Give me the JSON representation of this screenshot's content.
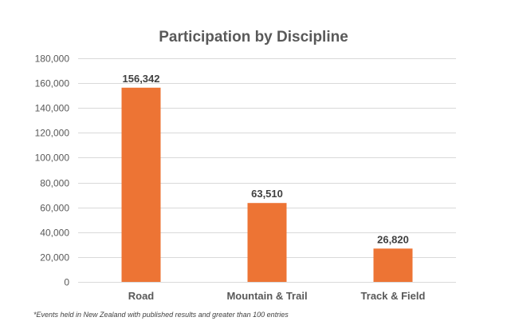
{
  "chart_data": {
    "type": "bar",
    "title": "Participation by Discipline",
    "xlabel": "",
    "ylabel": "",
    "categories": [
      "Road",
      "Mountain & Trail",
      "Track & Field"
    ],
    "values": [
      156342,
      63510,
      26820
    ],
    "data_labels": [
      "156,342",
      "63,510",
      "26,820"
    ],
    "ylim": [
      0,
      180000
    ],
    "yticks": [
      0,
      20000,
      40000,
      60000,
      80000,
      100000,
      120000,
      140000,
      160000,
      180000
    ],
    "ytick_labels": [
      "0",
      "20,000",
      "40,000",
      "60,000",
      "80,000",
      "100,000",
      "120,000",
      "140,000",
      "160,000",
      "180,000"
    ],
    "grid": true,
    "legend": "none",
    "bar_color": "#ED7434"
  },
  "footnote": "*Events held in New Zealand with published results and greater than 100 entries"
}
